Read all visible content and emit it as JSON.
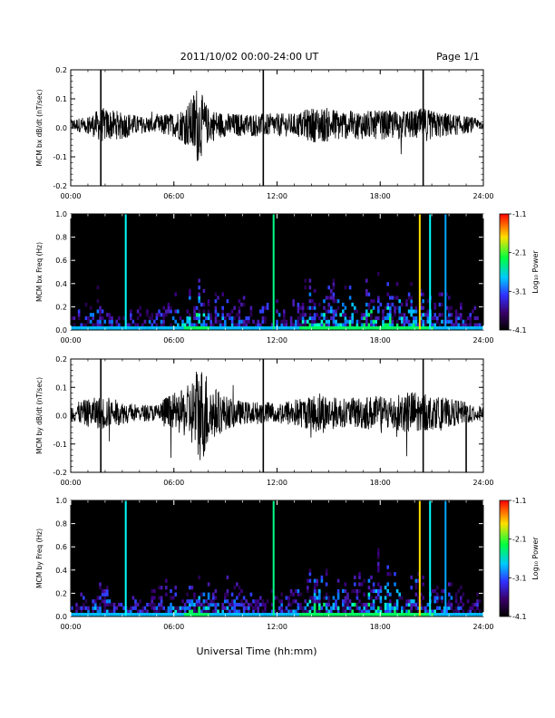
{
  "header": {
    "title": "2011/10/02  00:00-24:00 UT",
    "page": "Page 1/1"
  },
  "footer": {
    "xlabel": "Universal Time (hh:mm)"
  },
  "colors": {
    "trace": "#000000",
    "background": "#ffffff",
    "spectrogram_bg": "#000000"
  },
  "chart_data": [
    {
      "type": "line",
      "ylabel": "MCM bx dB/dt (nT/sec)",
      "xlim": [
        0,
        24
      ],
      "ylim": [
        -0.2,
        0.2
      ],
      "xticks": [
        "00:00",
        "06:00",
        "12:00",
        "18:00",
        "24:00"
      ],
      "yticks": [
        "-0.2",
        "-0.1",
        "0.0",
        "0.1",
        "0.2"
      ],
      "envelope_hours": [
        0,
        1,
        1.8,
        2.5,
        3,
        4,
        5,
        5.5,
        6,
        6.5,
        7,
        7.3,
        7.6,
        8,
        9,
        10,
        11,
        12,
        13,
        14,
        15,
        16,
        17,
        18,
        19,
        20,
        20.5,
        21,
        22,
        23,
        24
      ],
      "envelope_amp": [
        0.02,
        0.03,
        0.06,
        0.05,
        0.05,
        0.03,
        0.03,
        0.04,
        0.04,
        0.06,
        0.09,
        0.14,
        0.11,
        0.06,
        0.04,
        0.04,
        0.04,
        0.04,
        0.04,
        0.06,
        0.06,
        0.05,
        0.05,
        0.05,
        0.05,
        0.05,
        0.06,
        0.05,
        0.04,
        0.03,
        0.02
      ],
      "spikes": [
        {
          "x": 1.75,
          "y": [
            -0.2,
            0.2
          ]
        },
        {
          "x": 11.2,
          "y": [
            -0.2,
            0.2
          ]
        },
        {
          "x": 20.5,
          "y": [
            -0.2,
            0.2
          ]
        }
      ]
    },
    {
      "type": "heatmap",
      "ylabel": "MCM bx Freq (Hz)",
      "xlim": [
        0,
        24
      ],
      "ylim": [
        0,
        1.0
      ],
      "xticks": [
        "00:00",
        "06:00",
        "12:00",
        "18:00",
        "24:00"
      ],
      "yticks": [
        "0.0",
        "0.2",
        "0.4",
        "0.6",
        "0.8",
        "1.0"
      ],
      "colorbar": {
        "label": "Log₁₀ Power",
        "range": [
          -4.1,
          -1.1
        ],
        "ticks": [
          "-1.1",
          "-2.1",
          "-3.1",
          "-4.1"
        ]
      },
      "vertical_lines": [
        {
          "x": 3.2,
          "color": "#00ffff"
        },
        {
          "x": 11.8,
          "color": "#00ff88"
        },
        {
          "x": 20.3,
          "color": "#ffe000"
        },
        {
          "x": 20.9,
          "color": "#00ffff"
        },
        {
          "x": 21.8,
          "color": "#00aaff"
        }
      ]
    },
    {
      "type": "line",
      "ylabel": "MCM by dB/dt (nT/sec)",
      "xlim": [
        0,
        24
      ],
      "ylim": [
        -0.2,
        0.2
      ],
      "xticks": [
        "00:00",
        "06:00",
        "12:00",
        "18:00",
        "24:00"
      ],
      "yticks": [
        "-0.2",
        "-0.1",
        "0.0",
        "0.1",
        "0.2"
      ],
      "envelope_hours": [
        0,
        1,
        2,
        3,
        4,
        5,
        5.5,
        6,
        6.5,
        7,
        7.4,
        7.8,
        8.2,
        9,
        10,
        11,
        12,
        13,
        14,
        14.5,
        15,
        16,
        17,
        18,
        19,
        20,
        20.5,
        21,
        22,
        23,
        24
      ],
      "envelope_amp": [
        0.03,
        0.05,
        0.06,
        0.04,
        0.03,
        0.03,
        0.06,
        0.07,
        0.08,
        0.11,
        0.18,
        0.16,
        0.1,
        0.06,
        0.04,
        0.04,
        0.04,
        0.05,
        0.06,
        0.08,
        0.06,
        0.05,
        0.06,
        0.06,
        0.07,
        0.08,
        0.07,
        0.06,
        0.05,
        0.04,
        0.03
      ],
      "spikes": [
        {
          "x": 1.75,
          "y": [
            -0.2,
            0.2
          ]
        },
        {
          "x": 11.2,
          "y": [
            -0.2,
            0.2
          ]
        },
        {
          "x": 20.5,
          "y": [
            -0.2,
            0.2
          ]
        },
        {
          "x": 23.0,
          "y": [
            -0.2,
            0.0
          ]
        }
      ]
    },
    {
      "type": "heatmap",
      "ylabel": "MCM by Freq (Hz)",
      "xlim": [
        0,
        24
      ],
      "ylim": [
        0,
        1.0
      ],
      "xticks": [
        "00:00",
        "06:00",
        "12:00",
        "18:00",
        "24:00"
      ],
      "yticks": [
        "0.0",
        "0.2",
        "0.4",
        "0.6",
        "0.8",
        "1.0"
      ],
      "colorbar": {
        "label": "Log₁₀ Power",
        "range": [
          -4.1,
          -1.1
        ],
        "ticks": [
          "-1.1",
          "-2.1",
          "-3.1",
          "-4.1"
        ]
      },
      "vertical_lines": [
        {
          "x": 3.2,
          "color": "#00ffff"
        },
        {
          "x": 11.8,
          "color": "#00ff88"
        },
        {
          "x": 20.3,
          "color": "#ffe000"
        },
        {
          "x": 20.9,
          "color": "#00ffff"
        },
        {
          "x": 21.8,
          "color": "#00aaff"
        }
      ]
    }
  ]
}
